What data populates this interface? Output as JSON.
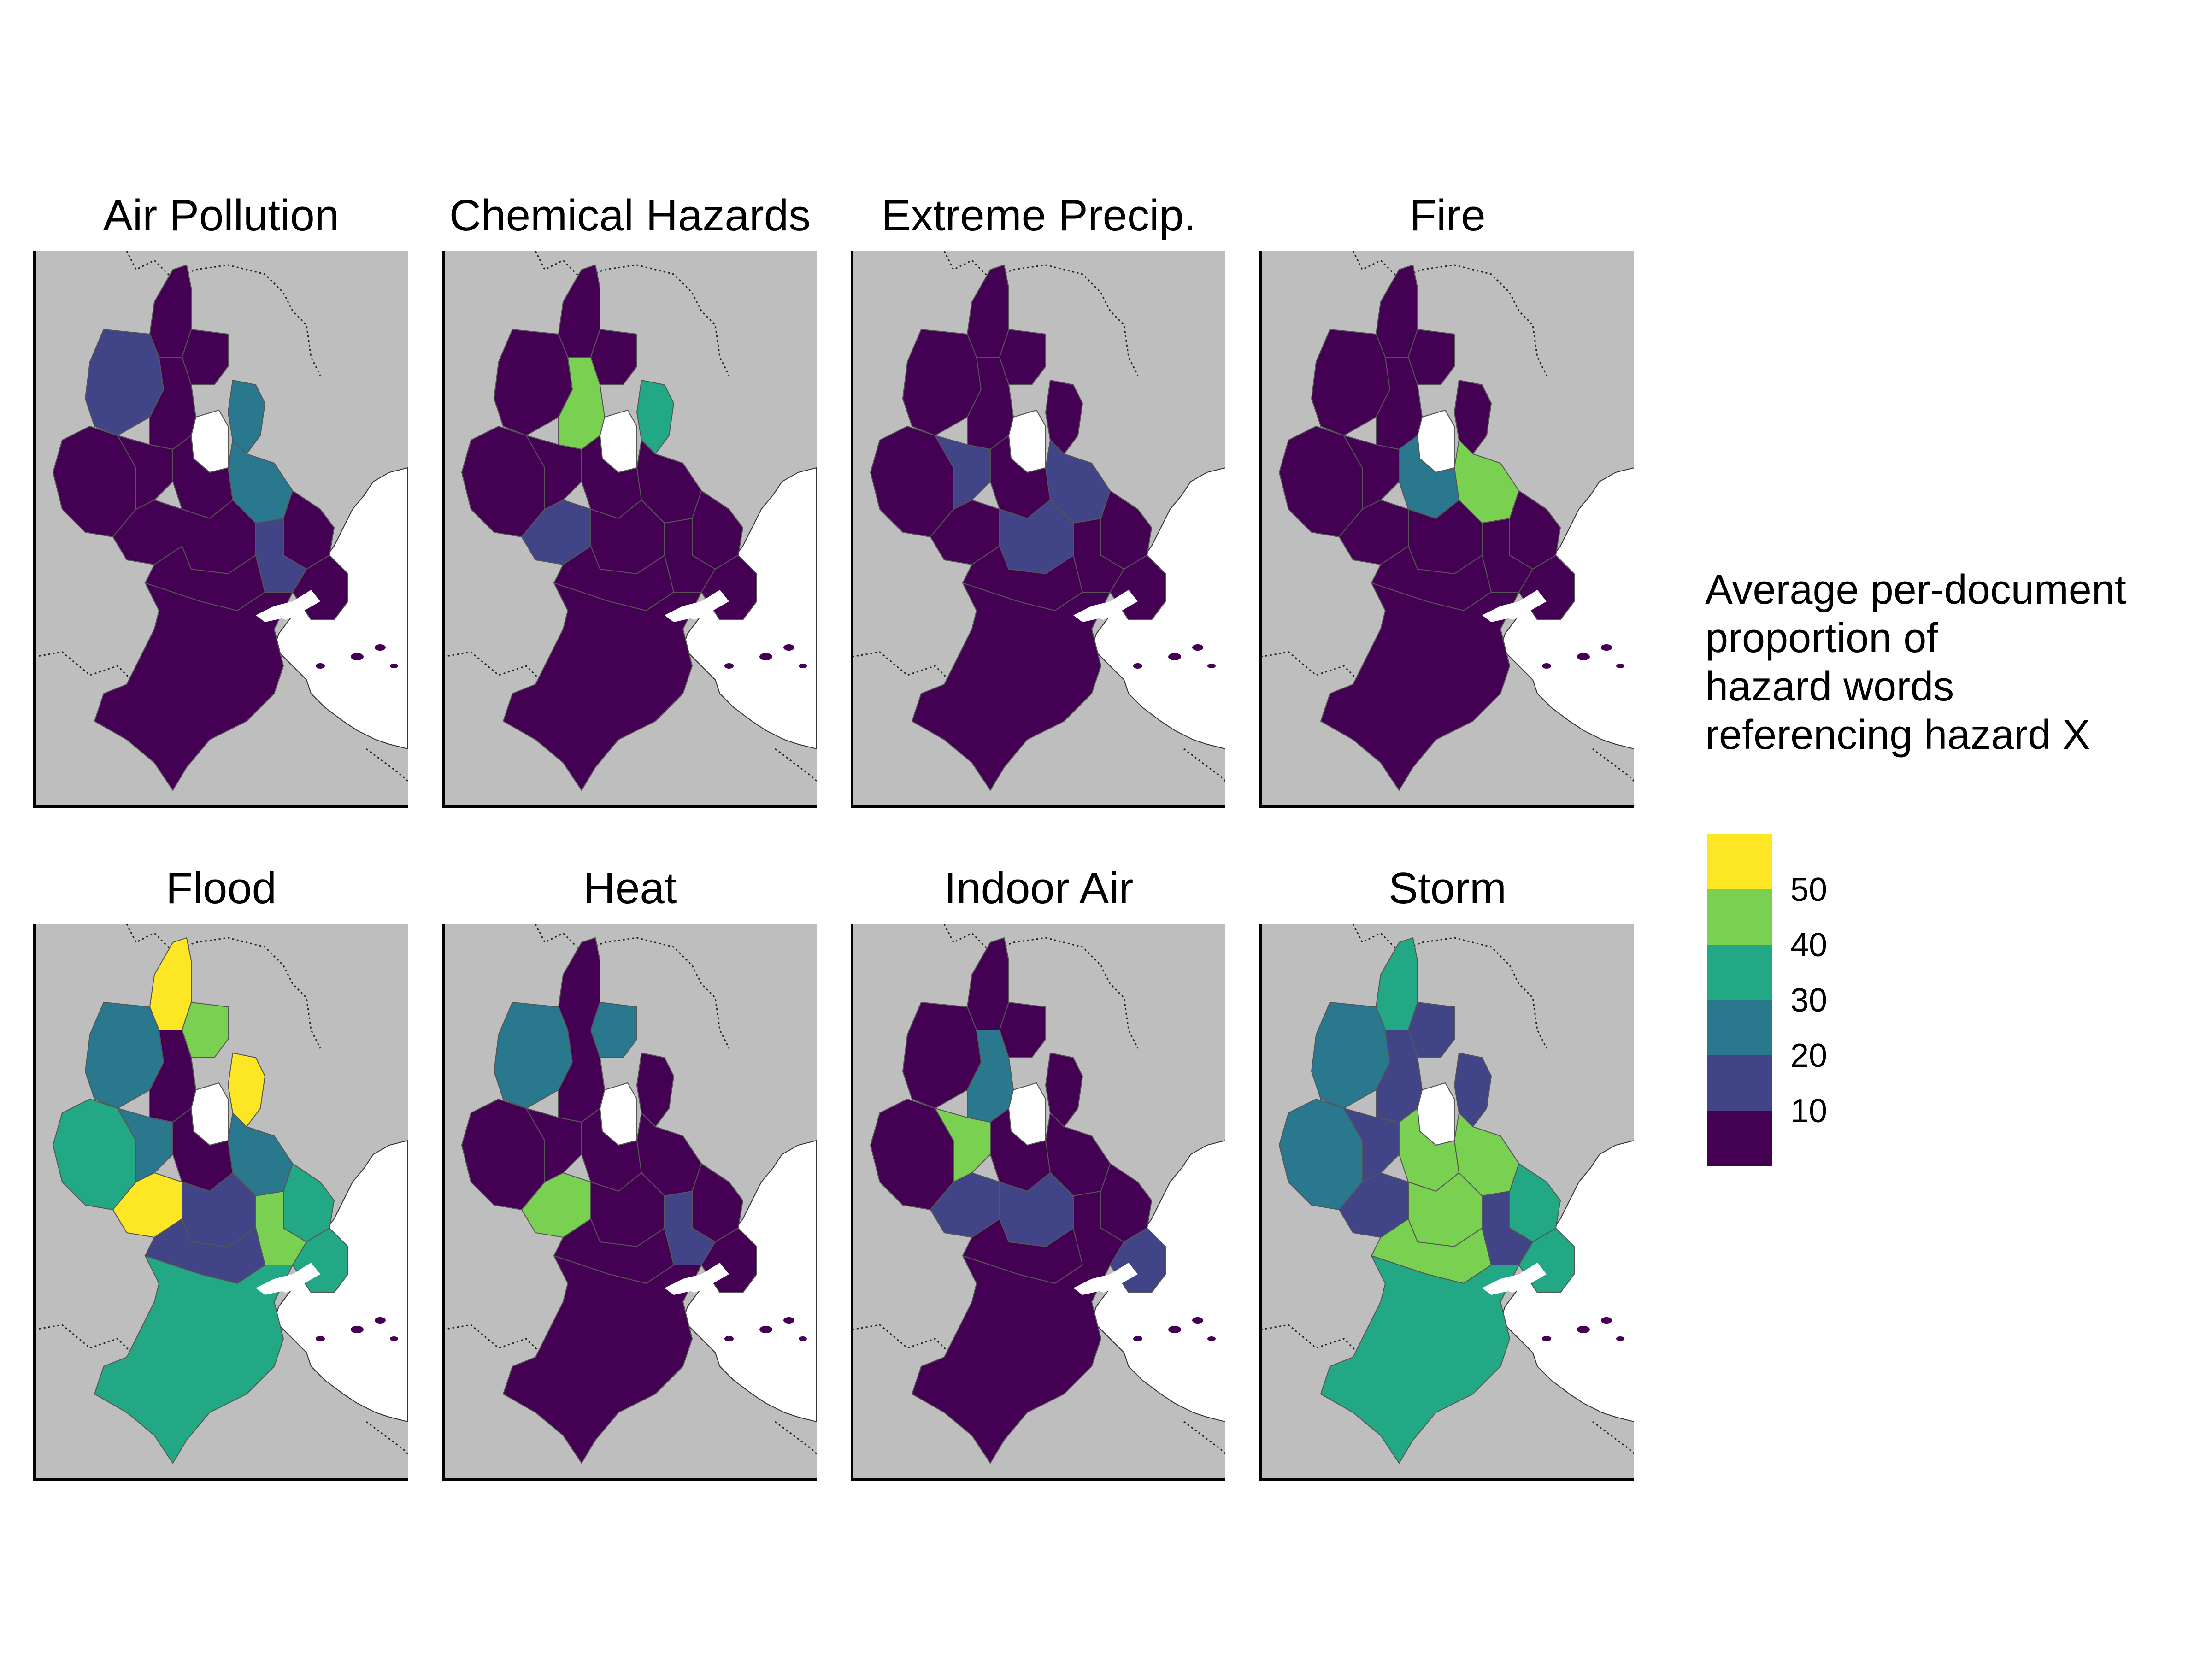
{
  "map_title": "",
  "panels": [
    {
      "title": "Air Pollution"
    },
    {
      "title": "Chemical Hazards"
    },
    {
      "title": "Extreme Precip."
    },
    {
      "title": "Fire"
    },
    {
      "title": "Flood"
    },
    {
      "title": "Heat"
    },
    {
      "title": "Indoor Air"
    },
    {
      "title": "Storm"
    }
  ],
  "legend": {
    "title_lines": [
      "Average per-document",
      "proportion of",
      "hazard words",
      "referencing hazard X"
    ],
    "ticks": [
      "50",
      "40",
      "30",
      "20",
      "10"
    ],
    "bins": [
      {
        "color": "#FDE725"
      },
      {
        "color": "#7AD151"
      },
      {
        "color": "#22A884"
      },
      {
        "color": "#2A788E"
      },
      {
        "color": "#414487"
      },
      {
        "color": "#440154"
      }
    ]
  },
  "colors": {
    "background_land": "#BEBEBE",
    "water": "#FFFFFF",
    "neighborhood_border": "#555555",
    "panel_axis": "#000000",
    "low": "#440154",
    "mid_low": "#414487",
    "mid": "#2A788E",
    "mid_high": "#22A884",
    "high": "#7AD151",
    "highest": "#FDE725"
  }
}
